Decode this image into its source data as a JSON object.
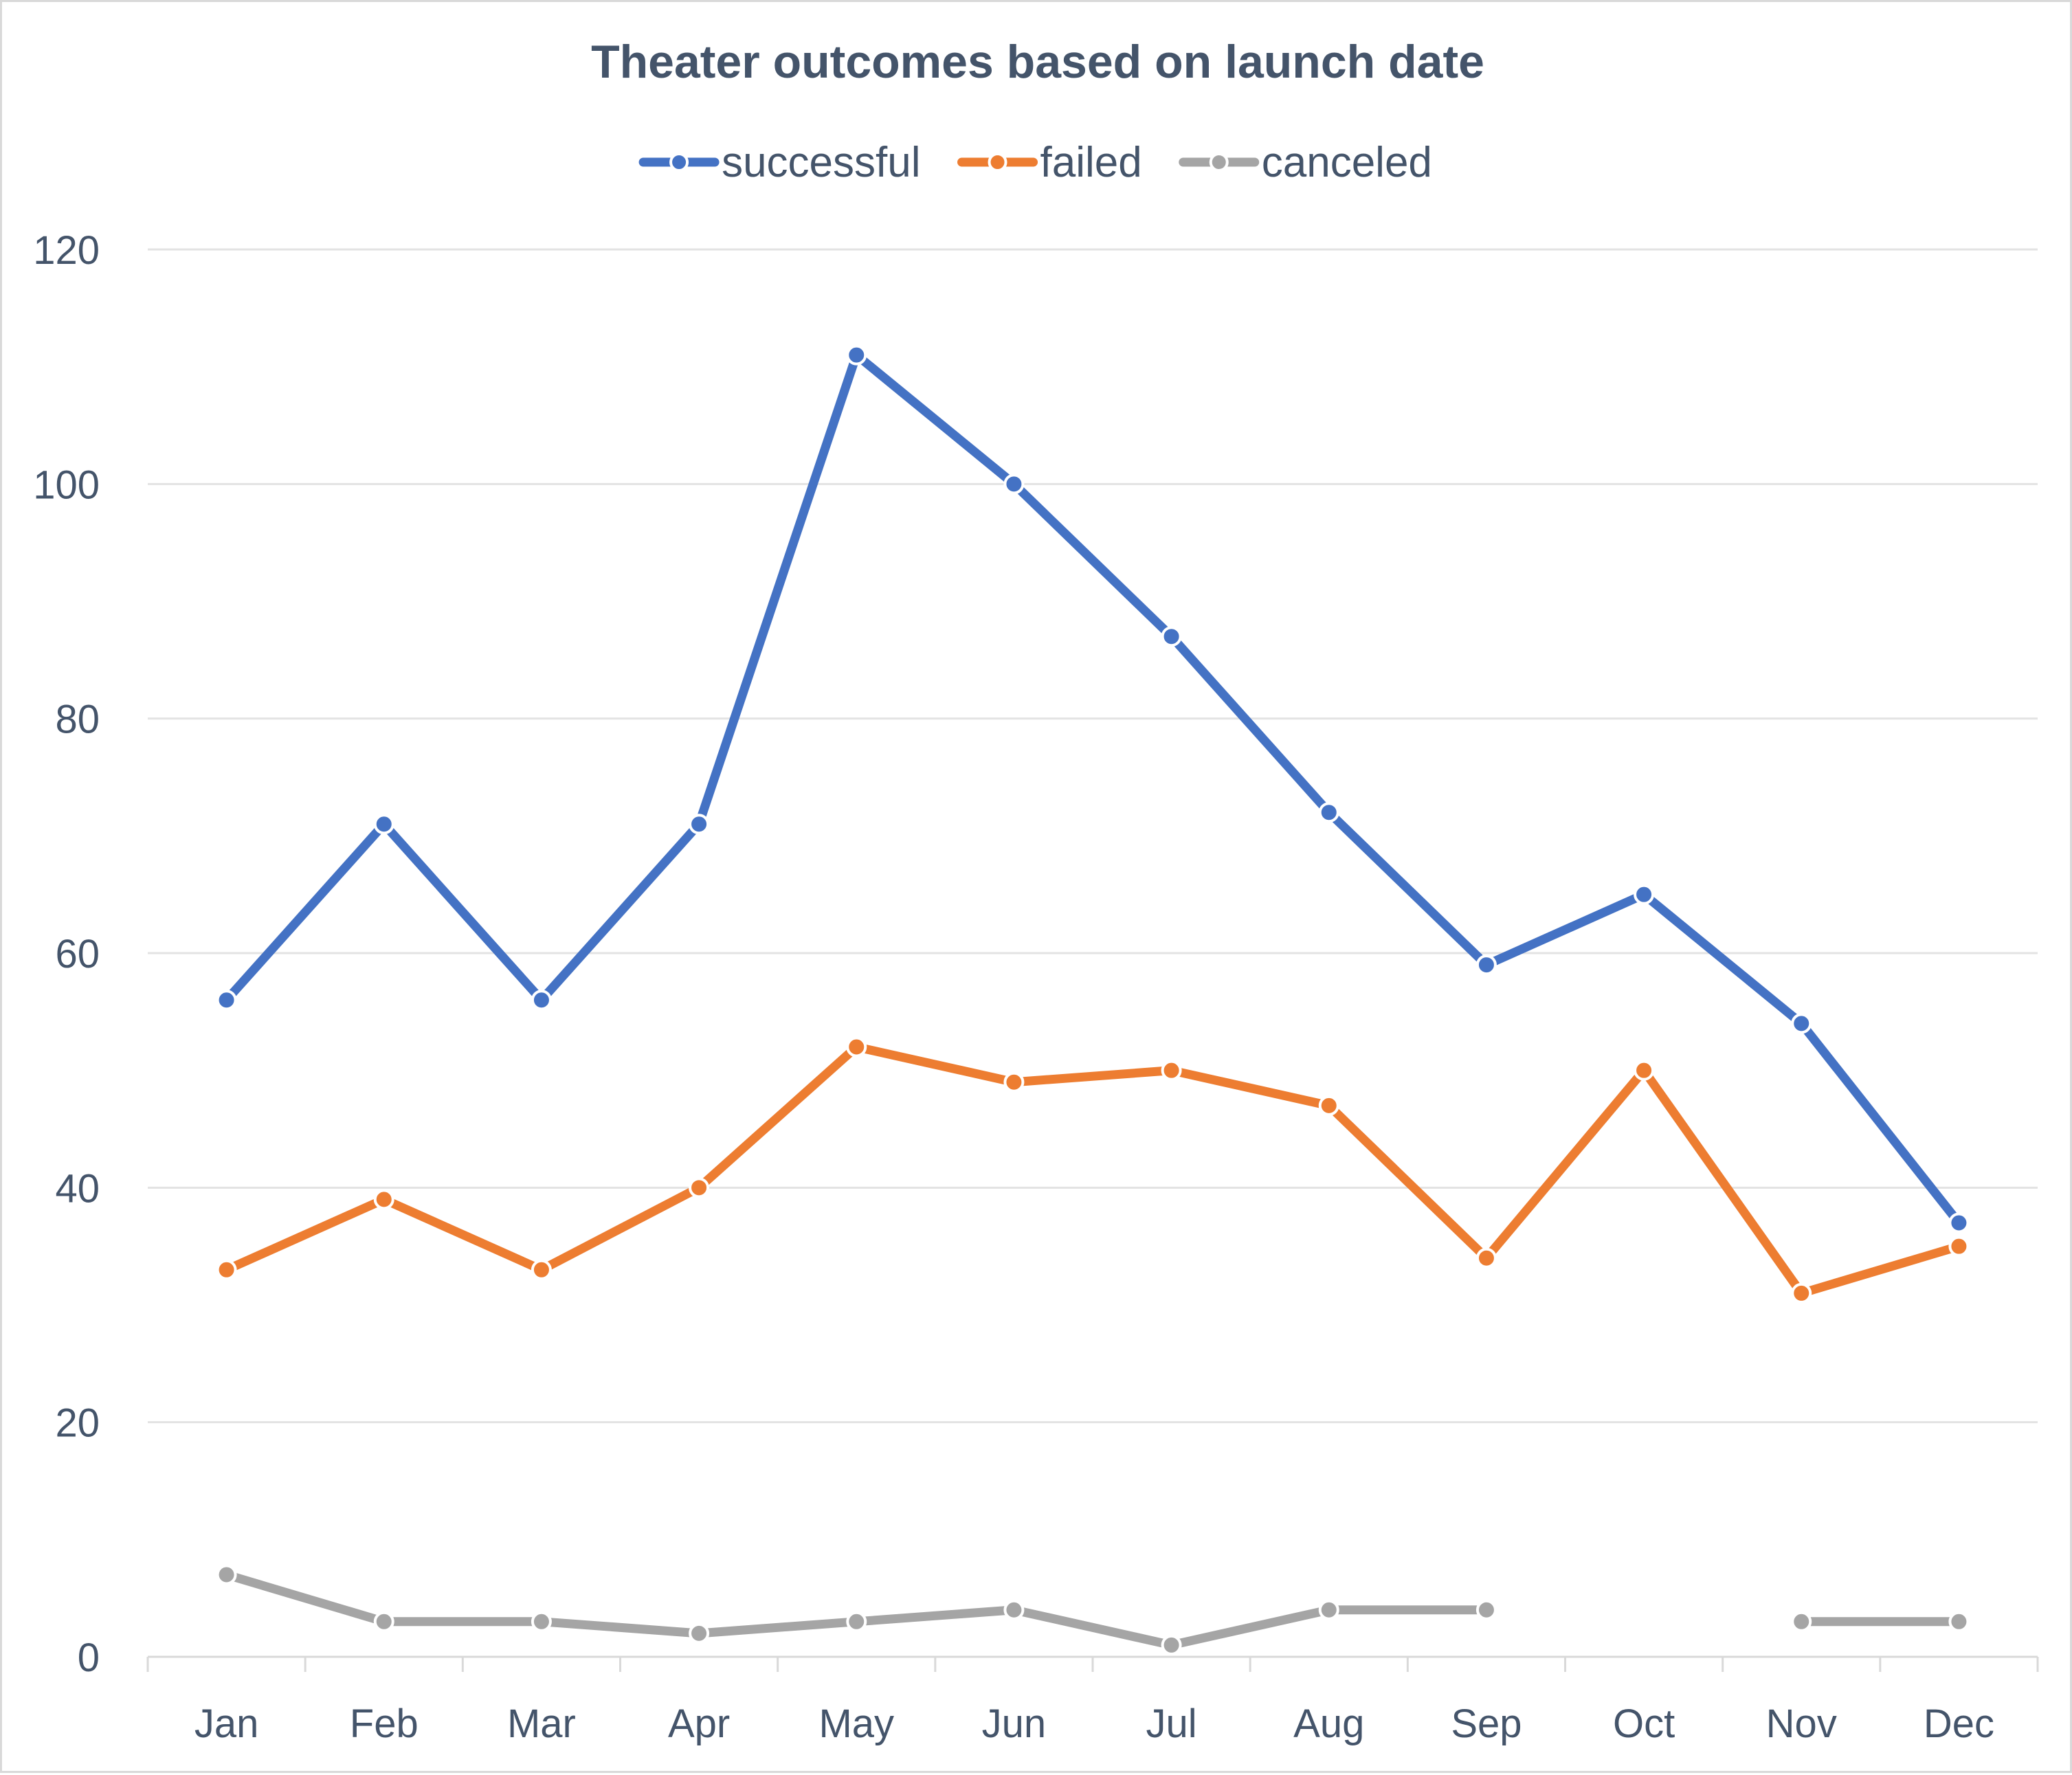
{
  "chart_data": {
    "type": "line",
    "title": "Theater outcomes based on launch date",
    "xlabel": "",
    "ylabel": "",
    "categories": [
      "Jan",
      "Feb",
      "Mar",
      "Apr",
      "May",
      "Jun",
      "Jul",
      "Aug",
      "Sep",
      "Oct",
      "Nov",
      "Dec"
    ],
    "yticks": [
      0,
      20,
      40,
      60,
      80,
      100,
      120
    ],
    "ylim": [
      0,
      120
    ],
    "grid": true,
    "legend_position": "top",
    "series": [
      {
        "name": "successful",
        "color": "#4472c4",
        "values": [
          56,
          71,
          56,
          71,
          111,
          100,
          87,
          72,
          59,
          65,
          54,
          37
        ]
      },
      {
        "name": "failed",
        "color": "#ed7d31",
        "values": [
          33,
          39,
          33,
          40,
          52,
          49,
          50,
          47,
          34,
          50,
          31,
          35
        ]
      },
      {
        "name": "canceled",
        "color": "#a5a5a5",
        "values": [
          7,
          3,
          3,
          2,
          3,
          4,
          1,
          4,
          4,
          null,
          3,
          3
        ]
      }
    ]
  }
}
